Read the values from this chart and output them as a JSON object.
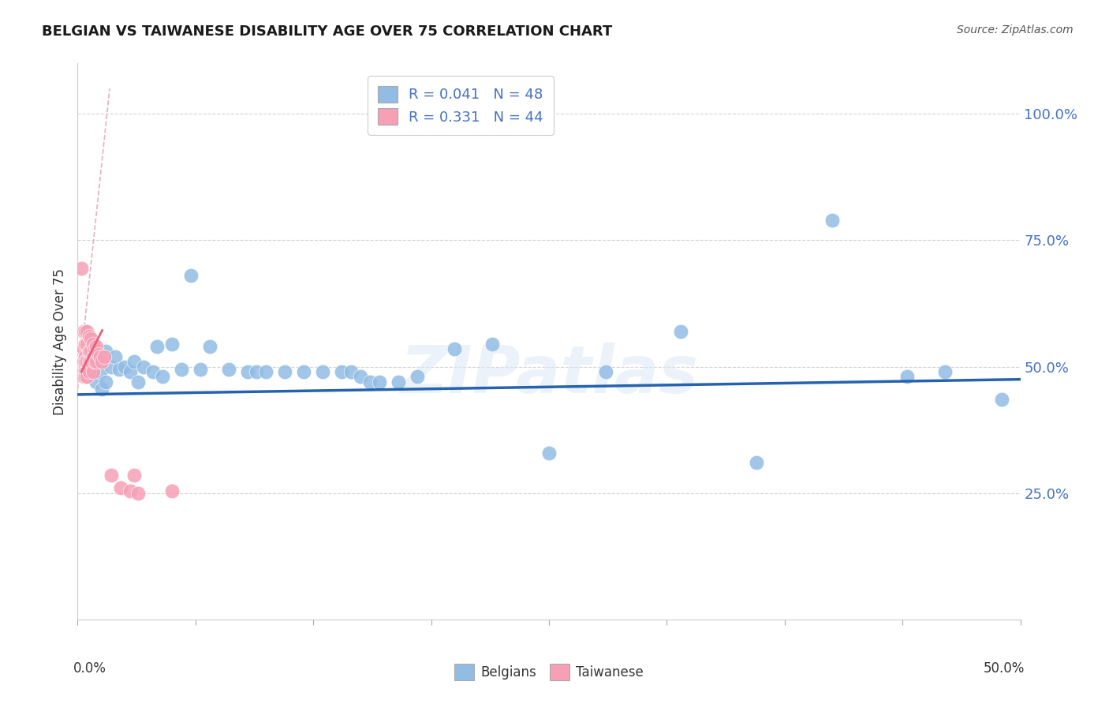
{
  "title": "BELGIAN VS TAIWANESE DISABILITY AGE OVER 75 CORRELATION CHART",
  "source": "Source: ZipAtlas.com",
  "ylabel": "Disability Age Over 75",
  "xlim": [
    0.0,
    0.5
  ],
  "ylim": [
    0.0,
    1.1
  ],
  "ytick_labels": [
    "25.0%",
    "50.0%",
    "75.0%",
    "100.0%"
  ],
  "ytick_values": [
    0.25,
    0.5,
    0.75,
    1.0
  ],
  "background_color": "#ffffff",
  "grid_color": "#c8c8c8",
  "watermark": "ZIPatlas",
  "belgian_R": 0.041,
  "belgian_N": 48,
  "taiwanese_R": 0.331,
  "taiwanese_N": 44,
  "legend_label1": "R = 0.041   N = 48",
  "legend_label2": "R = 0.331   N = 44",
  "belgian_color": "#92bce4",
  "taiwanese_color": "#f5a0b5",
  "belgian_line_color": "#2563ae",
  "taiwanese_line_color": "#e8607a",
  "taiwanese_dash_color": "#e8b0bc",
  "belgian_x": [
    0.005,
    0.008,
    0.01,
    0.01,
    0.012,
    0.013,
    0.015,
    0.015,
    0.018,
    0.02,
    0.022,
    0.025,
    0.028,
    0.03,
    0.032,
    0.035,
    0.04,
    0.042,
    0.045,
    0.05,
    0.055,
    0.06,
    0.065,
    0.07,
    0.08,
    0.09,
    0.095,
    0.1,
    0.11,
    0.12,
    0.13,
    0.14,
    0.145,
    0.15,
    0.155,
    0.16,
    0.17,
    0.18,
    0.2,
    0.22,
    0.25,
    0.28,
    0.32,
    0.36,
    0.4,
    0.44,
    0.46,
    0.49
  ],
  "belgian_y": [
    0.485,
    0.49,
    0.51,
    0.47,
    0.49,
    0.455,
    0.53,
    0.47,
    0.5,
    0.52,
    0.495,
    0.5,
    0.49,
    0.51,
    0.47,
    0.5,
    0.49,
    0.54,
    0.48,
    0.545,
    0.495,
    0.68,
    0.495,
    0.54,
    0.495,
    0.49,
    0.49,
    0.49,
    0.49,
    0.49,
    0.49,
    0.49,
    0.49,
    0.48,
    0.47,
    0.47,
    0.47,
    0.48,
    0.535,
    0.545,
    0.33,
    0.49,
    0.57,
    0.31,
    0.79,
    0.48,
    0.49,
    0.435
  ],
  "taiwanese_x": [
    0.002,
    0.003,
    0.003,
    0.003,
    0.003,
    0.003,
    0.003,
    0.004,
    0.004,
    0.004,
    0.004,
    0.004,
    0.004,
    0.004,
    0.005,
    0.005,
    0.005,
    0.005,
    0.005,
    0.005,
    0.006,
    0.006,
    0.006,
    0.006,
    0.007,
    0.007,
    0.007,
    0.008,
    0.008,
    0.008,
    0.009,
    0.009,
    0.01,
    0.01,
    0.011,
    0.012,
    0.013,
    0.014,
    0.018,
    0.023,
    0.028,
    0.03,
    0.032,
    0.05
  ],
  "taiwanese_y": [
    0.695,
    0.57,
    0.535,
    0.51,
    0.49,
    0.51,
    0.48,
    0.57,
    0.545,
    0.52,
    0.5,
    0.49,
    0.48,
    0.51,
    0.57,
    0.545,
    0.51,
    0.49,
    0.48,
    0.51,
    0.56,
    0.53,
    0.51,
    0.49,
    0.555,
    0.53,
    0.51,
    0.545,
    0.52,
    0.49,
    0.535,
    0.51,
    0.54,
    0.51,
    0.525,
    0.52,
    0.51,
    0.52,
    0.285,
    0.26,
    0.255,
    0.285,
    0.25,
    0.255
  ]
}
